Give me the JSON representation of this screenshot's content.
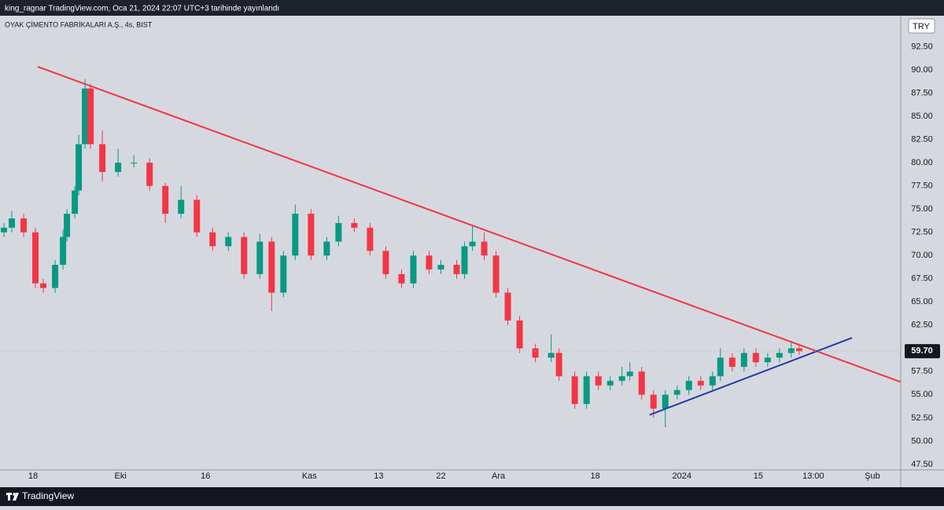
{
  "header": {
    "text": "king_ragnar TradingView.com, Oca 21, 2024 22:07 UTC+3 tarihinde yayınlandı"
  },
  "footer": {
    "brand": "TradingView"
  },
  "chart_data": {
    "type": "candlestick",
    "title": "OYAK ÇİMENTO FABRİKALARI A.Ş., 4s, BIST",
    "currency": "TRY",
    "up_color": "#089981",
    "down_color": "#f23645",
    "x": [
      1.25,
      3.75,
      7.5,
      11.25,
      13.75,
      17.5,
      20,
      21.25,
      23.75,
      25,
      27,
      28.75,
      32.5,
      37.5,
      42.5,
      47.5,
      52.5,
      57.5,
      62.5,
      67.5,
      72.5,
      77.5,
      82.5,
      86.25,
      90,
      93.75,
      98.75,
      103.75,
      107.5,
      112.5,
      117.5,
      122.5,
      127.5,
      131.25,
      136.25,
      140,
      145,
      147.5,
      150,
      153.75,
      157.5,
      161.25,
      165,
      170,
      175,
      177.5,
      182.5,
      186.25,
      190,
      193.75,
      197.5,
      200,
      203.75,
      207.5,
      211.25,
      215,
      218.75,
      222.5,
      226.25,
      228.75,
      232.5,
      236.25,
      240,
      243.75,
      247.5,
      251.25,
      253.75
    ],
    "open": [
      72.5,
      73,
      74,
      72.5,
      67,
      66.5,
      69,
      72,
      74.5,
      77,
      82,
      88,
      82,
      79,
      80,
      80,
      77.5,
      74.5,
      76,
      72.5,
      71,
      72,
      68,
      71.5,
      66,
      70,
      74.5,
      70,
      71.5,
      73.5,
      73,
      70.5,
      68,
      67,
      70,
      68.5,
      69,
      68,
      71,
      71.5,
      70,
      66,
      63,
      60,
      59,
      59.5,
      57,
      54,
      57,
      56,
      56.5,
      57,
      57.5,
      55,
      53.5,
      55,
      55.5,
      56.5,
      56,
      57,
      59,
      58,
      59.5,
      58.5,
      59,
      59.5,
      60
    ],
    "high": [
      73.5,
      74.8,
      74.5,
      73,
      67.5,
      69.5,
      72.8,
      75,
      77.5,
      83,
      89,
      88.5,
      83.5,
      81.5,
      80.8,
      80.5,
      77.8,
      77.5,
      76.5,
      73,
      72.5,
      72.5,
      72.3,
      72,
      70.5,
      75.5,
      75,
      72,
      74.3,
      74,
      73.5,
      71,
      68.5,
      70.5,
      70.5,
      69.5,
      69.5,
      71.5,
      73.2,
      72.5,
      70.5,
      66.5,
      63.5,
      60.5,
      61.5,
      60,
      57.5,
      57.5,
      57.5,
      57,
      58,
      58.5,
      58,
      55.5,
      55.5,
      56,
      57,
      57,
      57.5,
      60,
      59.5,
      60,
      60,
      59.5,
      60,
      60.8,
      60.5
    ],
    "low": [
      72,
      72.5,
      72,
      66.5,
      66,
      66,
      68.5,
      71.5,
      74,
      76.5,
      81.5,
      81.5,
      78,
      78.5,
      79.5,
      77,
      73.5,
      74,
      72,
      70.5,
      70.5,
      67.5,
      67.5,
      64,
      65.5,
      69.5,
      69.5,
      69.5,
      71,
      72.5,
      70,
      67.5,
      66.5,
      66.5,
      68,
      68,
      67.5,
      67.5,
      70.5,
      69.5,
      65.5,
      62.5,
      59.5,
      58.5,
      58.5,
      56.5,
      53.5,
      53.5,
      55.5,
      55.5,
      56,
      56.5,
      54.5,
      52.5,
      51.5,
      54.5,
      55,
      55.5,
      55.5,
      56.5,
      57.5,
      57.5,
      58,
      58,
      58.5,
      59,
      59.3
    ],
    "close": [
      73,
      74,
      72.5,
      67,
      66.5,
      69,
      72,
      74.5,
      77,
      82,
      88,
      82,
      79,
      80,
      80,
      77.5,
      74.5,
      76,
      72.5,
      71,
      72,
      68,
      71.5,
      66,
      70,
      74.5,
      70,
      71.5,
      73.5,
      73,
      70.5,
      68,
      67,
      70,
      68.5,
      69,
      68,
      71,
      71.5,
      70,
      66,
      63,
      60,
      59,
      59.5,
      57,
      54,
      57,
      56,
      56.5,
      57,
      57.5,
      55,
      53.5,
      55,
      55.5,
      56.5,
      56,
      57,
      59,
      58,
      59.5,
      58.5,
      59,
      59.5,
      60,
      59.7
    ],
    "xlim": [
      0,
      286
    ],
    "xticks": [
      {
        "value": 10.5,
        "label": "18"
      },
      {
        "value": 38.25,
        "label": "Eki"
      },
      {
        "value": 65.25,
        "label": "16"
      },
      {
        "value": 98.25,
        "label": "Kas"
      },
      {
        "value": 120.25,
        "label": "13"
      },
      {
        "value": 140,
        "label": "22"
      },
      {
        "value": 158.25,
        "label": "Ara"
      },
      {
        "value": 189,
        "label": "18"
      },
      {
        "value": 216.5,
        "label": "2024"
      },
      {
        "value": 240.75,
        "label": "15"
      },
      {
        "value": 258.25,
        "label": "13:00"
      },
      {
        "value": 277,
        "label": "Şub"
      }
    ],
    "ylim": [
      46.9,
      95.84
    ],
    "yticks": [
      {
        "value": 47.5,
        "label": "47.50"
      },
      {
        "value": 50,
        "label": "50.00"
      },
      {
        "value": 52.5,
        "label": "52.50"
      },
      {
        "value": 55,
        "label": "55.00"
      },
      {
        "value": 57.5,
        "label": "57.50"
      },
      {
        "value": 60,
        "label": "60.00"
      },
      {
        "value": 62.5,
        "label": "62.50"
      },
      {
        "value": 65,
        "label": "65.00"
      },
      {
        "value": 67.5,
        "label": "67.50"
      },
      {
        "value": 70,
        "label": "70.00"
      },
      {
        "value": 72.5,
        "label": "72.50"
      },
      {
        "value": 75,
        "label": "75.00"
      },
      {
        "value": 77.5,
        "label": "77.50"
      },
      {
        "value": 80,
        "label": "80.00"
      },
      {
        "value": 82.5,
        "label": "82.50"
      },
      {
        "value": 85,
        "label": "85.00"
      },
      {
        "value": 87.5,
        "label": "87.50"
      },
      {
        "value": 90,
        "label": "90.00"
      },
      {
        "value": 92.5,
        "label": "92.50"
      }
    ],
    "last_price": {
      "value": 59.7,
      "label": "59.70"
    },
    "trendlines": [
      {
        "color": "#f23645",
        "x": [
          12,
          286
        ],
        "y": [
          90.34,
          56.38
        ]
      },
      {
        "color": "#1e3fa0",
        "x": [
          206.25,
          270.5
        ],
        "y": [
          52.83,
          61.13
        ]
      }
    ]
  }
}
